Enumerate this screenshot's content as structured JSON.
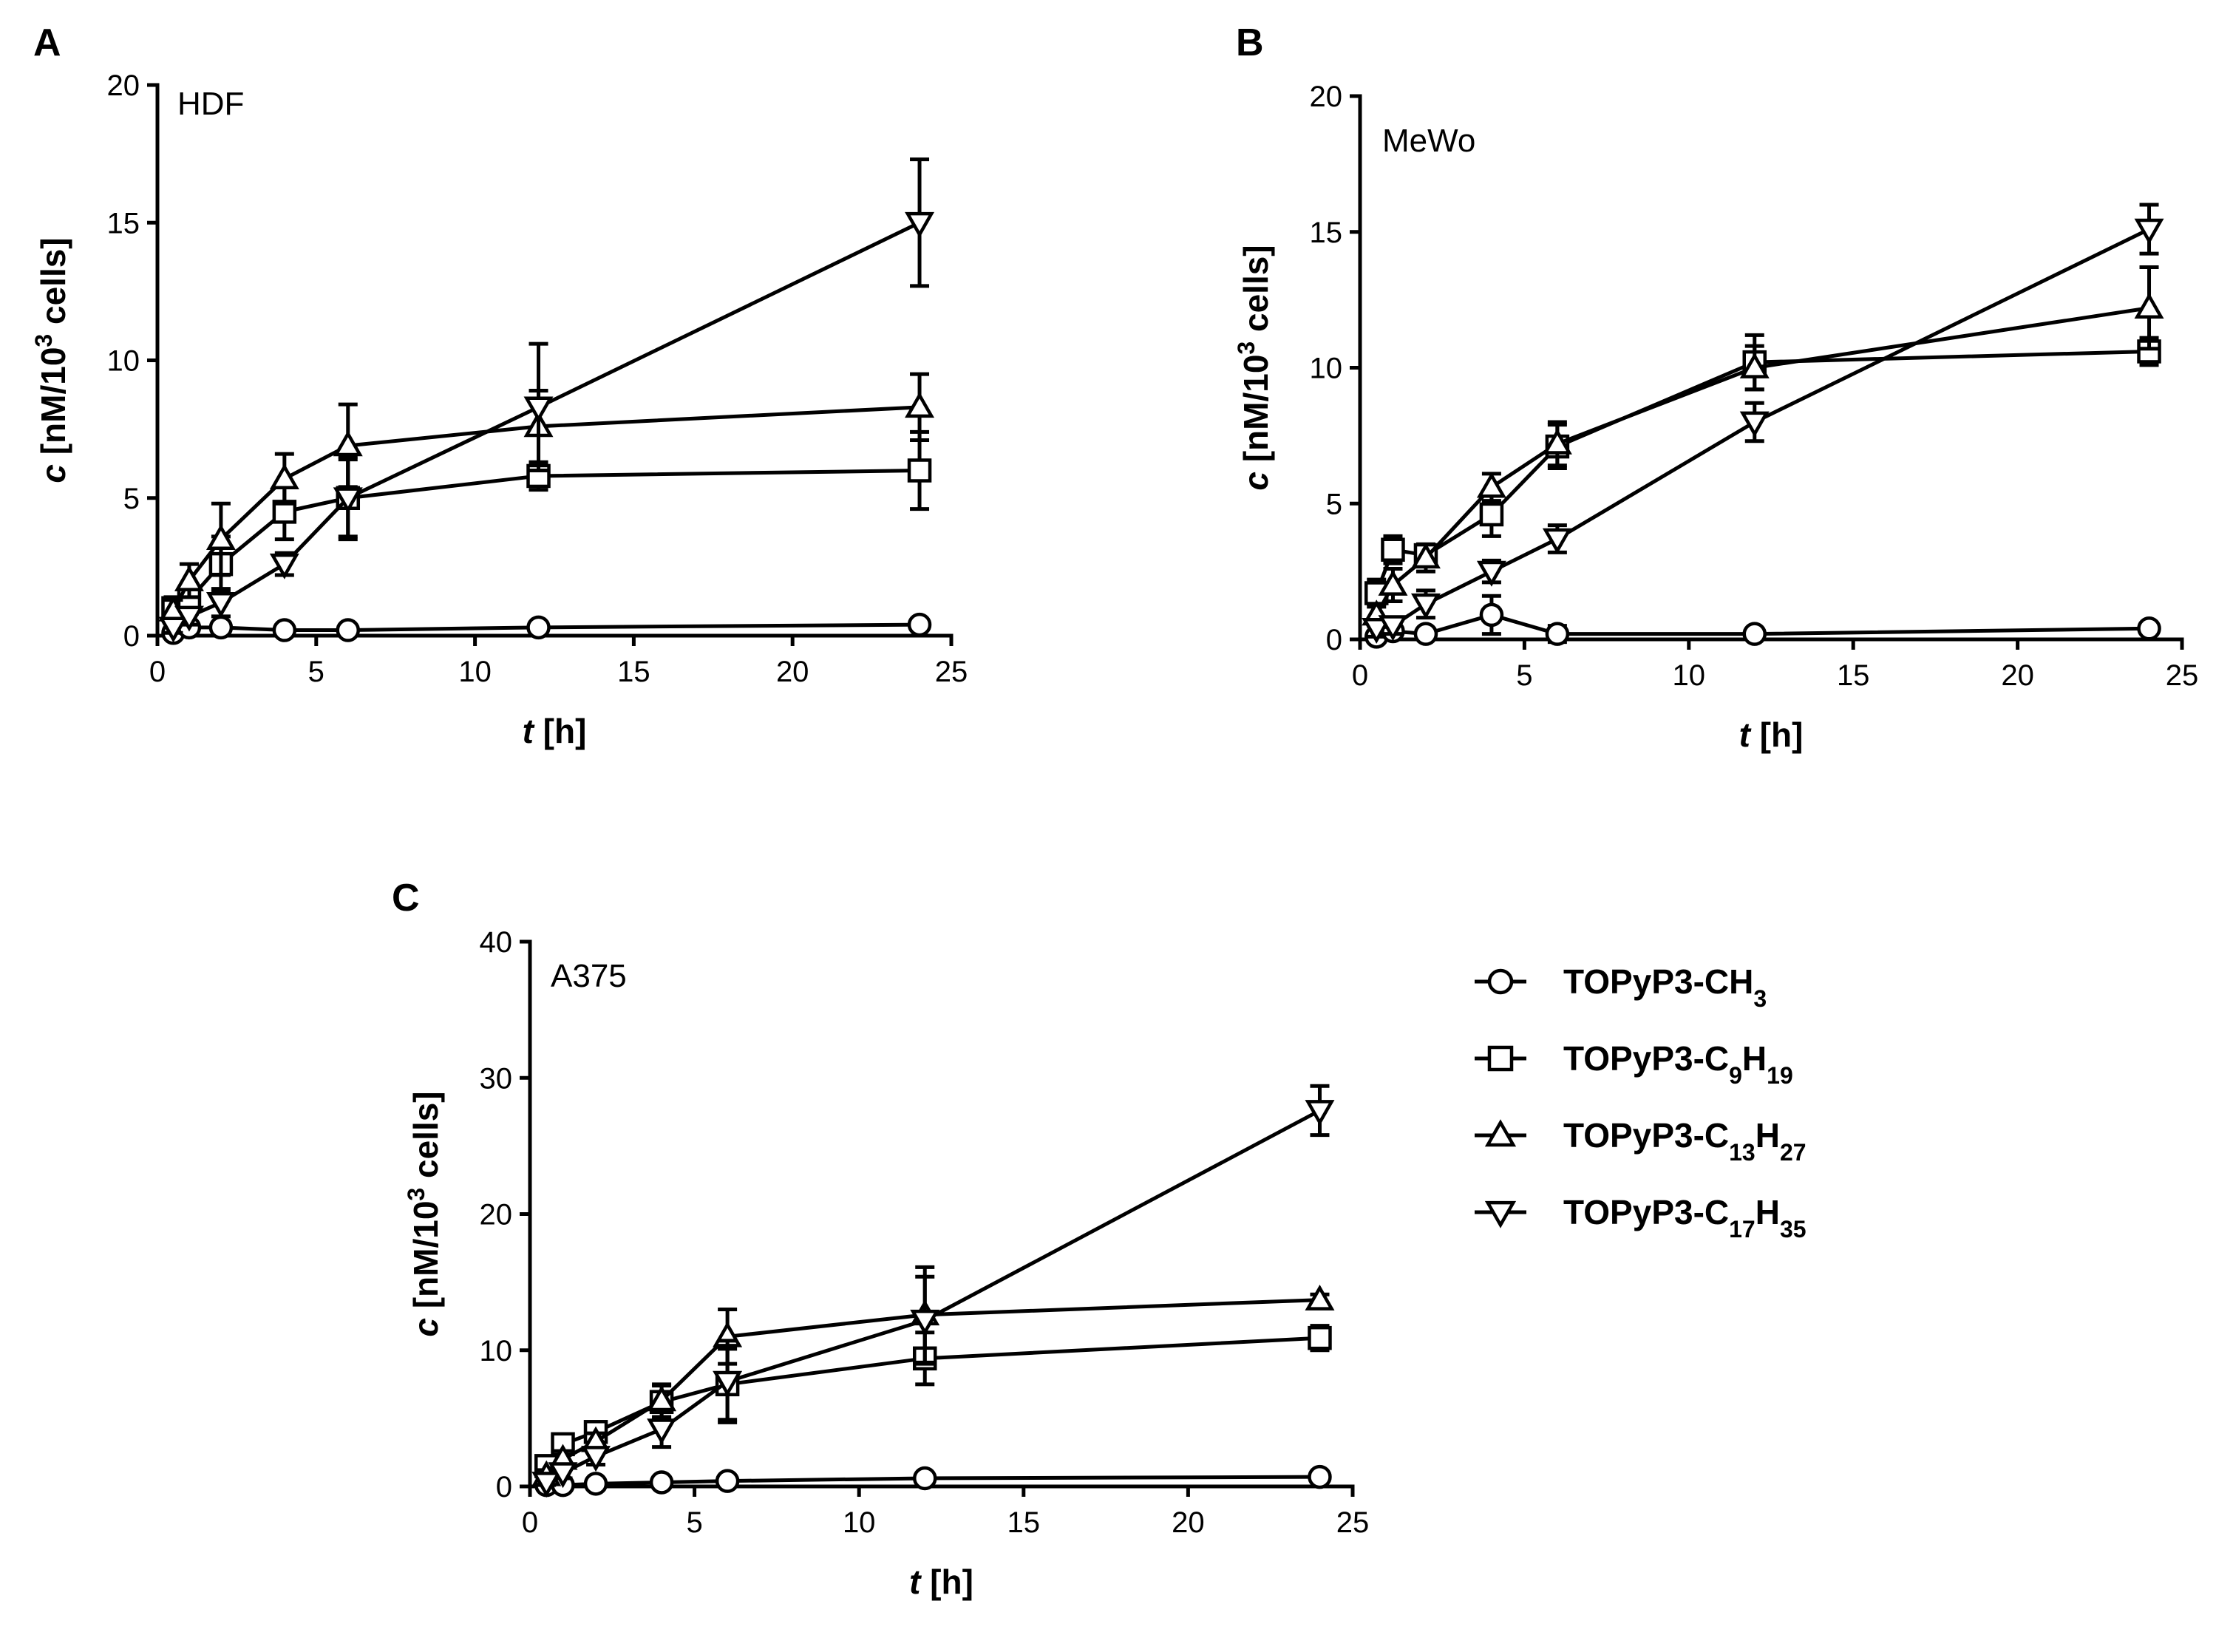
{
  "chart_data": [
    {
      "type": "line",
      "panel": "A",
      "cell_line": "HDF",
      "xlabel_var": "t",
      "xlabel_unit": "[h]",
      "ylabel_var": "c",
      "ylabel_pre": "[nM/10",
      "ylabel_sup": "3",
      "ylabel_post": " cells]",
      "xlim": [
        0,
        25
      ],
      "ylim": [
        0,
        20
      ],
      "xticks": [
        0,
        5,
        10,
        15,
        20,
        25
      ],
      "yticks": [
        0,
        5,
        10,
        15,
        20
      ],
      "x": [
        0.5,
        1,
        2,
        4,
        6,
        12,
        24
      ],
      "series": [
        {
          "name": "TOPyP3-CH3",
          "marker": "circle",
          "values": [
            0.1,
            0.3,
            0.3,
            0.2,
            0.2,
            0.3,
            0.4
          ],
          "errors": [
            0.1,
            0.1,
            0.1,
            0.1,
            0.1,
            0.1,
            0.1
          ]
        },
        {
          "name": "TOPyP3-C9H19",
          "marker": "square",
          "values": [
            1.0,
            1.3,
            2.6,
            4.5,
            5.0,
            5.8,
            6.0
          ],
          "errors": [
            0.4,
            0.5,
            1.0,
            1.0,
            1.5,
            0.5,
            1.4
          ]
        },
        {
          "name": "TOPyP3-C13H27",
          "marker": "triangle-up",
          "values": [
            0.9,
            2.0,
            3.5,
            5.7,
            6.9,
            7.6,
            8.3
          ],
          "errors": [
            0.4,
            0.6,
            1.3,
            0.9,
            1.5,
            1.3,
            1.2
          ]
        },
        {
          "name": "TOPyP3-C17H35",
          "marker": "triangle-down",
          "values": [
            0.3,
            0.7,
            1.2,
            2.6,
            5.0,
            8.3,
            15.0
          ],
          "errors": [
            0.2,
            0.3,
            0.5,
            0.4,
            1.4,
            2.3,
            2.3
          ]
        }
      ]
    },
    {
      "type": "line",
      "panel": "B",
      "cell_line": "MeWo",
      "xlabel_var": "t",
      "xlabel_unit": "[h]",
      "ylabel_var": "c",
      "ylabel_pre": "[nM/10",
      "ylabel_sup": "3",
      "ylabel_post": " cells]",
      "xlim": [
        0,
        25
      ],
      "ylim": [
        0,
        20
      ],
      "xticks": [
        0,
        5,
        10,
        15,
        20,
        25
      ],
      "yticks": [
        0,
        5,
        10,
        15,
        20
      ],
      "x": [
        0.5,
        1,
        2,
        4,
        6,
        12,
        24
      ],
      "series": [
        {
          "name": "TOPyP3-CH3",
          "marker": "circle",
          "values": [
            0.1,
            0.3,
            0.2,
            0.9,
            0.2,
            0.2,
            0.4
          ],
          "errors": [
            0.1,
            0.1,
            0.1,
            0.7,
            0.3,
            0.1,
            0.1
          ]
        },
        {
          "name": "TOPyP3-C9H19",
          "marker": "square",
          "values": [
            1.7,
            3.3,
            3.1,
            4.6,
            7.1,
            10.2,
            10.6
          ],
          "errors": [
            0.5,
            0.5,
            0.4,
            0.8,
            0.8,
            1.0,
            0.5
          ]
        },
        {
          "name": "TOPyP3-C13H27",
          "marker": "triangle-up",
          "values": [
            0.9,
            2.0,
            3.0,
            5.6,
            7.2,
            10.0,
            12.2
          ],
          "errors": [
            0.4,
            0.6,
            0.5,
            0.5,
            0.8,
            0.8,
            1.5
          ]
        },
        {
          "name": "TOPyP3-C17H35",
          "marker": "triangle-down",
          "values": [
            0.4,
            0.5,
            1.3,
            2.5,
            3.7,
            8.0,
            15.1
          ],
          "errors": [
            0.3,
            0.3,
            0.5,
            0.4,
            0.5,
            0.7,
            0.9
          ]
        }
      ]
    },
    {
      "type": "line",
      "panel": "C",
      "cell_line": "A375",
      "xlabel_var": "t",
      "xlabel_unit": "[h]",
      "ylabel_var": "c",
      "ylabel_pre": "[nM/10",
      "ylabel_sup": "3",
      "ylabel_post": " cells]",
      "xlim": [
        0,
        25
      ],
      "ylim": [
        0,
        40
      ],
      "xticks": [
        0,
        5,
        10,
        15,
        20,
        25
      ],
      "yticks": [
        0,
        10,
        20,
        30,
        40
      ],
      "x": [
        0.5,
        1,
        2,
        4,
        6,
        12,
        24
      ],
      "series": [
        {
          "name": "TOPyP3-CH3",
          "marker": "circle",
          "values": [
            0.1,
            0.1,
            0.2,
            0.3,
            0.4,
            0.6,
            0.7
          ],
          "errors": [
            0.1,
            0.1,
            0.1,
            0.1,
            0.1,
            0.2,
            0.1
          ]
        },
        {
          "name": "TOPyP3-C9H19",
          "marker": "square",
          "values": [
            1.5,
            3.1,
            4.0,
            6.2,
            7.5,
            9.4,
            10.9
          ],
          "errors": [
            0.6,
            0.6,
            0.6,
            1.2,
            2.6,
            1.9,
            0.9
          ]
        },
        {
          "name": "TOPyP3-C13H27",
          "marker": "triangle-up",
          "values": [
            0.8,
            2.0,
            3.3,
            6.3,
            11.0,
            12.6,
            13.7
          ],
          "errors": [
            0.4,
            0.6,
            0.6,
            1.2,
            2.0,
            3.5,
            0.4
          ]
        },
        {
          "name": "TOPyP3-C17H35",
          "marker": "triangle-down",
          "values": [
            0.3,
            1.0,
            2.2,
            4.2,
            7.7,
            12.2,
            27.6
          ],
          "errors": [
            0.2,
            0.4,
            0.6,
            1.3,
            3.0,
            3.2,
            1.8
          ]
        }
      ]
    }
  ],
  "legend": [
    {
      "marker": "circle",
      "base": "TOPyP3-CH",
      "sub1": "3",
      "mid": "",
      "sub2": ""
    },
    {
      "marker": "square",
      "base": "TOPyP3-C",
      "sub1": "9",
      "mid": "H",
      "sub2": "19"
    },
    {
      "marker": "triangle-up",
      "base": "TOPyP3-C",
      "sub1": "13",
      "mid": "H",
      "sub2": "27"
    },
    {
      "marker": "triangle-down",
      "base": "TOPyP3-C",
      "sub1": "17",
      "mid": "H",
      "sub2": "35"
    }
  ]
}
